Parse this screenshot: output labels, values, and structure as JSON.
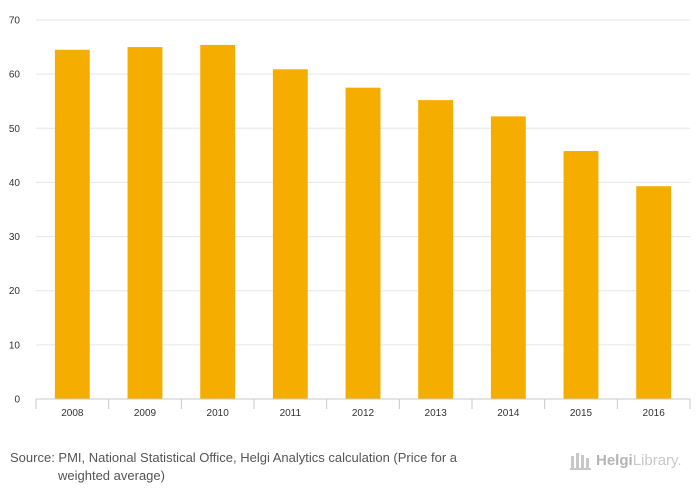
{
  "chart_data": {
    "type": "bar",
    "categories": [
      "2008",
      "2009",
      "2010",
      "2011",
      "2012",
      "2013",
      "2014",
      "2015",
      "2016"
    ],
    "values": [
      64.5,
      65.0,
      65.4,
      60.9,
      57.5,
      55.2,
      52.2,
      45.8,
      39.3
    ],
    "title": "",
    "xlabel": "",
    "ylabel": "",
    "ylim": [
      0,
      70
    ],
    "yticks": [
      0,
      10,
      20,
      30,
      40,
      50,
      60,
      70
    ],
    "grid": true,
    "bar_color": "#f5ae00"
  },
  "footer": {
    "source_line1": "Source: PMI, National Statistical Office, Helgi Analytics calculation (Price for a",
    "source_line2": "weighted average)"
  },
  "logo": {
    "bold": "Helgi",
    "regular": "Library.",
    "icon": "helgilibrary-logo-icon",
    "color": "#bdbdbd"
  }
}
